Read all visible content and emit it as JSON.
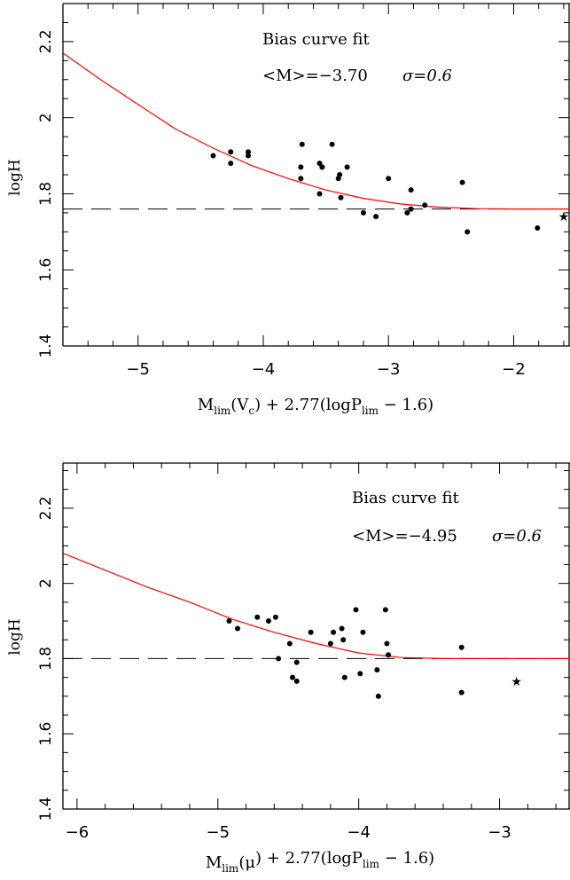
{
  "chart_data": [
    {
      "type": "scatter",
      "annotation_title": "Bias curve fit",
      "annotation_mean": "<M>=−3.70",
      "annotation_sigma": "σ=0.6",
      "ylabel": "logH",
      "xlabel_main": "M",
      "xlabel_sub1": "lim",
      "xlabel_paren": "(V",
      "xlabel_sub2": "c",
      "xlabel_rest": ") + 2.77(logP",
      "xlabel_sub3": "lim",
      "xlabel_end": " − 1.6)",
      "xlim": [
        -5.6,
        -1.55
      ],
      "ylim": [
        1.4,
        2.3
      ],
      "xticks": [
        -5,
        -4,
        -3,
        -2
      ],
      "xtick_labels": [
        "−5",
        "−4",
        "−3",
        "−2"
      ],
      "yticks": [
        1.4,
        1.6,
        1.8,
        2.0,
        2.2
      ],
      "ytick_labels": [
        "1.4",
        "1.6",
        "1.8",
        "2",
        "2.2"
      ],
      "grid": false,
      "reference_line": {
        "y": 1.76,
        "style": "dashed"
      },
      "curve": {
        "color": "#ff0000",
        "x": [
          -5.6,
          -5.3,
          -5.0,
          -4.7,
          -4.4,
          -4.1,
          -3.8,
          -3.5,
          -3.2,
          -2.9,
          -2.6,
          -2.3,
          -2.0,
          -1.7,
          -1.55
        ],
        "y": [
          2.17,
          2.1,
          2.035,
          1.97,
          1.92,
          1.875,
          1.84,
          1.81,
          1.788,
          1.773,
          1.765,
          1.761,
          1.76,
          1.76,
          1.76
        ]
      },
      "points": {
        "x": [
          -4.4,
          -4.26,
          -4.26,
          -4.12,
          -4.12,
          -3.69,
          -3.7,
          -3.7,
          -3.55,
          -3.55,
          -3.53,
          -3.53,
          -3.45,
          -3.4,
          -3.39,
          -3.38,
          -3.33,
          -3.0,
          -3.2,
          -3.1,
          -2.85,
          -2.82,
          -2.82,
          -2.71,
          -2.41,
          -2.37,
          -1.81
        ],
        "y": [
          1.9,
          1.91,
          1.88,
          1.91,
          1.9,
          1.93,
          1.87,
          1.84,
          1.88,
          1.8,
          1.87,
          1.87,
          1.93,
          1.84,
          1.85,
          1.79,
          1.87,
          1.84,
          1.75,
          1.74,
          1.75,
          1.81,
          1.76,
          1.77,
          1.83,
          1.7,
          1.71
        ]
      },
      "star_point": {
        "x": -1.6,
        "y": 1.74
      }
    },
    {
      "type": "scatter",
      "annotation_title": "Bias curve fit",
      "annotation_mean": "<M>=−4.95",
      "annotation_sigma": "σ=0.6",
      "ylabel": "logH",
      "xlabel_main": "M",
      "xlabel_sub1": "lim",
      "xlabel_paren": "(μ",
      "xlabel_sub2": "",
      "xlabel_rest": ") + 2.77(logP",
      "xlabel_sub3": "lim",
      "xlabel_end": " − 1.6)",
      "xlim": [
        -6.1,
        -2.5
      ],
      "ylim": [
        1.4,
        2.32
      ],
      "xticks": [
        -6,
        -5,
        -4,
        -3
      ],
      "xtick_labels": [
        "−6",
        "−5",
        "−4",
        "−3"
      ],
      "yticks": [
        1.4,
        1.6,
        1.8,
        2.0,
        2.2
      ],
      "ytick_labels": [
        "1.4",
        "1.6",
        "1.8",
        "2",
        "2.2"
      ],
      "grid": false,
      "reference_line": {
        "y": 1.8,
        "style": "dashed"
      },
      "curve": {
        "color": "#ff0000",
        "x": [
          -6.1,
          -5.8,
          -5.5,
          -5.2,
          -4.9,
          -4.6,
          -4.3,
          -4.0,
          -3.7,
          -3.4,
          -3.1,
          -2.8,
          -2.5
        ],
        "y": [
          2.08,
          2.035,
          1.99,
          1.95,
          1.905,
          1.87,
          1.84,
          1.815,
          1.803,
          1.8,
          1.8,
          1.8,
          1.8
        ]
      },
      "points": {
        "x": [
          -4.92,
          -4.86,
          -4.72,
          -4.64,
          -4.59,
          -4.57,
          -4.49,
          -4.47,
          -4.44,
          -4.44,
          -4.34,
          -4.2,
          -4.18,
          -4.12,
          -4.11,
          -4.1,
          -4.02,
          -3.99,
          -3.97,
          -3.87,
          -3.86,
          -3.81,
          -3.8,
          -3.79,
          -3.27,
          -3.27
        ],
        "y": [
          1.9,
          1.88,
          1.91,
          1.9,
          1.91,
          1.8,
          1.84,
          1.75,
          1.79,
          1.74,
          1.87,
          1.84,
          1.87,
          1.88,
          1.85,
          1.75,
          1.93,
          1.76,
          1.87,
          1.77,
          1.7,
          1.93,
          1.84,
          1.81,
          1.83,
          1.71
        ]
      },
      "star_point": {
        "x": -2.88,
        "y": 1.74
      }
    }
  ]
}
